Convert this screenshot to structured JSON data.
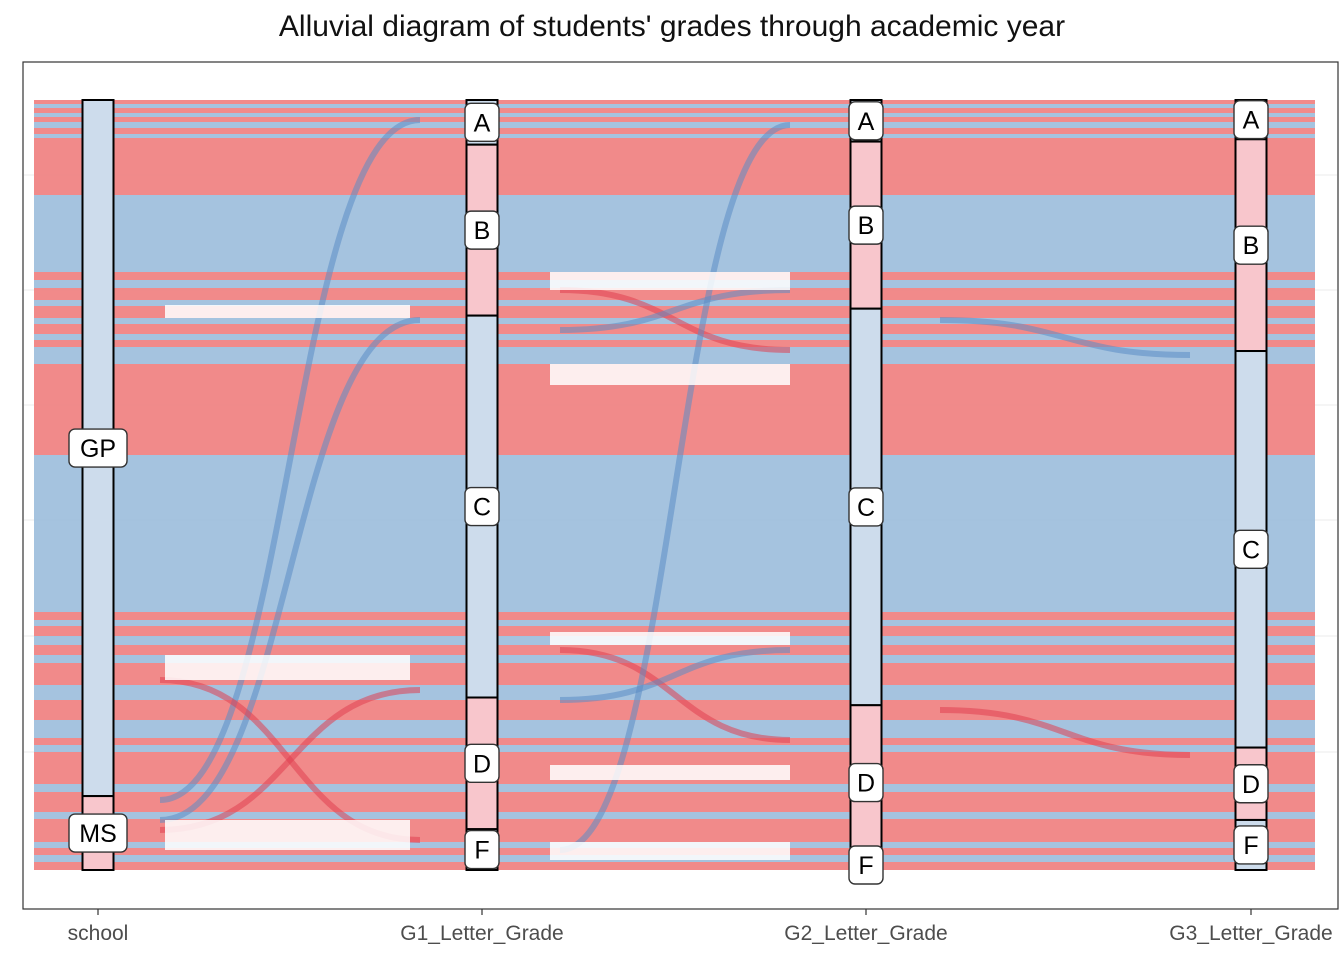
{
  "title": "Alluvial diagram of students' grades through academic year",
  "colors": {
    "red": "#f08080",
    "blue": "#9dbedc",
    "red_light": "#f8c6cc",
    "blue_light": "#cddcec",
    "border": "#000000",
    "grid": "#ebebeb"
  },
  "axes": [
    {
      "name": "school",
      "strata": [
        {
          "label": "GP",
          "share": 0.904
        },
        {
          "label": "MS",
          "share": 0.096
        }
      ]
    },
    {
      "name": "G1_Letter_Grade",
      "strata": [
        {
          "label": "A",
          "share": 0.058
        },
        {
          "label": "B",
          "share": 0.222
        },
        {
          "label": "C",
          "share": 0.496
        },
        {
          "label": "D",
          "share": 0.171
        },
        {
          "label": "F",
          "share": 0.053
        }
      ]
    },
    {
      "name": "G2_Letter_Grade",
      "strata": [
        {
          "label": "A",
          "share": 0.054
        },
        {
          "label": "B",
          "share": 0.217
        },
        {
          "label": "C",
          "share": 0.515
        },
        {
          "label": "D",
          "share": 0.201
        },
        {
          "label": "F",
          "share": 0.013
        }
      ]
    },
    {
      "name": "G3_Letter_Grade",
      "strata": [
        {
          "label": "A",
          "share": 0.051
        },
        {
          "label": "B",
          "share": 0.275
        },
        {
          "label": "C",
          "share": 0.515
        },
        {
          "label": "D",
          "share": 0.094
        },
        {
          "label": "F",
          "share": 0.065
        }
      ]
    }
  ]
}
